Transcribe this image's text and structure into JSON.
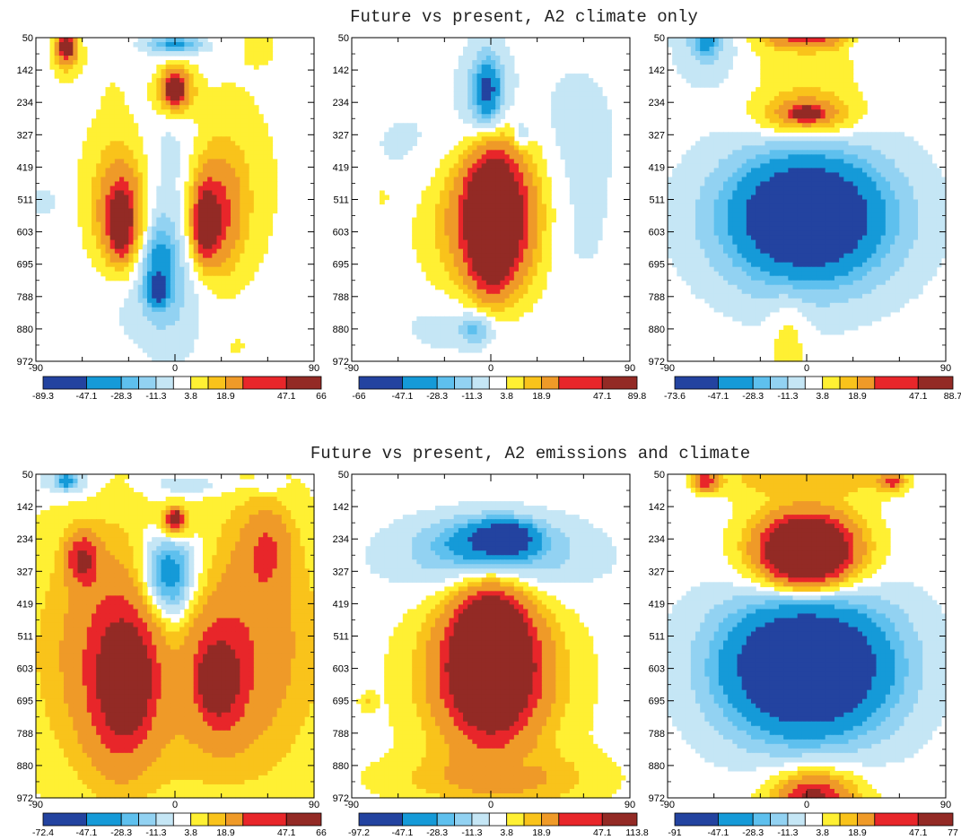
{
  "figure": {
    "rows": [
      {
        "title": "Future vs present, A2 climate only"
      },
      {
        "title": "Future vs present, A2 emissions and climate"
      }
    ]
  },
  "colors": [
    "#2343a0",
    "#159ad8",
    "#5ec0ee",
    "#92d2f2",
    "#c5e6f5",
    "#ffffff",
    "#fff033",
    "#f9c31b",
    "#ef9a28",
    "#e8262a",
    "#932a25"
  ],
  "chart_data": [
    {
      "type": "heatmap",
      "row": 0,
      "col": 0,
      "xlim": [
        -90,
        90
      ],
      "x_ticks": [
        "-90",
        "0",
        "90"
      ],
      "y_ticks": [
        "50",
        "142",
        "234",
        "327",
        "419",
        "511",
        "603",
        "695",
        "788",
        "880",
        "972"
      ],
      "colorbar": [
        "-89.3",
        "-47.1",
        "-28.3",
        "-11.3",
        "3.8",
        "18.9",
        "47.1",
        "66"
      ],
      "features": [
        {
          "x": 0,
          "y": 70,
          "rx": 18,
          "ry": 22,
          "v": -30
        },
        {
          "x": -70,
          "y": 100,
          "rx": 9,
          "ry": 60,
          "v": 20
        },
        {
          "x": -70,
          "y": 75,
          "rx": 5,
          "ry": 30,
          "v": 60
        },
        {
          "x": 55,
          "y": 80,
          "rx": 12,
          "ry": 55,
          "v": 6
        },
        {
          "x": 0,
          "y": 200,
          "rx": 12,
          "ry": 65,
          "v": 40
        },
        {
          "x": 0,
          "y": 190,
          "rx": 5,
          "ry": 35,
          "v": 55
        },
        {
          "x": -40,
          "y": 250,
          "rx": 6,
          "ry": 65,
          "v": 6
        },
        {
          "x": -35,
          "y": 480,
          "rx": 25,
          "ry": 220,
          "v": 13
        },
        {
          "x": -35,
          "y": 560,
          "rx": 14,
          "ry": 140,
          "v": 33
        },
        {
          "x": -35,
          "y": 580,
          "rx": 6,
          "ry": 75,
          "v": 55
        },
        {
          "x": 30,
          "y": 470,
          "rx": 32,
          "ry": 270,
          "v": 13
        },
        {
          "x": 25,
          "y": 560,
          "rx": 16,
          "ry": 150,
          "v": 33
        },
        {
          "x": 20,
          "y": 580,
          "rx": 7,
          "ry": 85,
          "v": 55
        },
        {
          "x": -2,
          "y": 560,
          "rx": 22,
          "ry": 360,
          "v": -15
        },
        {
          "x": -10,
          "y": 700,
          "rx": 10,
          "ry": 110,
          "v": -30
        },
        {
          "x": -12,
          "y": 770,
          "rx": 6,
          "ry": 40,
          "v": -40
        },
        {
          "x": -22,
          "y": 800,
          "rx": 38,
          "ry": 120,
          "v": -6
        },
        {
          "x": -85,
          "y": 520,
          "rx": 18,
          "ry": 70,
          "v": -5
        },
        {
          "x": 40,
          "y": 930,
          "rx": 4,
          "ry": 20,
          "v": 8
        }
      ]
    },
    {
      "type": "heatmap",
      "row": 0,
      "col": 1,
      "xlim": [
        -90,
        90
      ],
      "x_ticks": [
        "-90",
        "0",
        "90"
      ],
      "y_ticks": [
        "50",
        "142",
        "234",
        "327",
        "419",
        "511",
        "603",
        "695",
        "788",
        "880",
        "972"
      ],
      "colorbar": [
        "-66",
        "-47.1",
        "-28.3",
        "-11.3",
        "3.8",
        "18.9",
        "47.1",
        "89.8"
      ],
      "features": [
        {
          "x": -3,
          "y": 210,
          "rx": 16,
          "ry": 140,
          "v": -20
        },
        {
          "x": -2,
          "y": 200,
          "rx": 7,
          "ry": 75,
          "v": -40
        },
        {
          "x": -40,
          "y": 360,
          "rx": 50,
          "ry": 150,
          "v": -6
        },
        {
          "x": 55,
          "y": 320,
          "rx": 30,
          "ry": 220,
          "v": -7
        },
        {
          "x": 50,
          "y": 620,
          "rx": 30,
          "ry": 180,
          "v": -6
        },
        {
          "x": 20,
          "y": 330,
          "rx": 5,
          "ry": 40,
          "v": -15
        },
        {
          "x": 0,
          "y": 560,
          "rx": 42,
          "ry": 230,
          "v": 12
        },
        {
          "x": 0,
          "y": 560,
          "rx": 30,
          "ry": 200,
          "v": 25
        },
        {
          "x": 5,
          "y": 560,
          "rx": 20,
          "ry": 190,
          "v": 40
        },
        {
          "x": 0,
          "y": 580,
          "rx": 12,
          "ry": 150,
          "v": 75
        },
        {
          "x": -20,
          "y": 870,
          "rx": 40,
          "ry": 90,
          "v": -8
        },
        {
          "x": -10,
          "y": 880,
          "rx": 10,
          "ry": 40,
          "v": -20
        },
        {
          "x": -70,
          "y": 500,
          "rx": 4,
          "ry": 25,
          "v": 8
        }
      ]
    },
    {
      "type": "heatmap",
      "row": 0,
      "col": 2,
      "xlim": [
        -90,
        90
      ],
      "x_ticks": [
        "-90",
        "0",
        "90"
      ],
      "y_ticks": [
        "50",
        "142",
        "234",
        "327",
        "419",
        "511",
        "603",
        "695",
        "788",
        "880",
        "972"
      ],
      "colorbar": [
        "-73.6",
        "-47.1",
        "-28.3",
        "-11.3",
        "3.8",
        "18.9",
        "47.1",
        "88.7"
      ],
      "features": [
        {
          "x": 0,
          "y": 90,
          "rx": 38,
          "ry": 230,
          "v": 10
        },
        {
          "x": 0,
          "y": 270,
          "rx": 30,
          "ry": 60,
          "v": 30
        },
        {
          "x": 0,
          "y": 265,
          "rx": 10,
          "ry": 18,
          "v": 55
        },
        {
          "x": 0,
          "y": 55,
          "rx": 25,
          "ry": 25,
          "v": 30
        },
        {
          "x": -65,
          "y": 60,
          "rx": 20,
          "ry": 110,
          "v": -15
        },
        {
          "x": -65,
          "y": 60,
          "rx": 6,
          "ry": 35,
          "v": -30
        },
        {
          "x": 35,
          "y": 70,
          "rx": 10,
          "ry": 40,
          "v": -8
        },
        {
          "x": 0,
          "y": 560,
          "rx": 75,
          "ry": 300,
          "v": -6
        },
        {
          "x": 0,
          "y": 570,
          "rx": 60,
          "ry": 200,
          "v": -20
        },
        {
          "x": 0,
          "y": 560,
          "rx": 48,
          "ry": 170,
          "v": -40
        },
        {
          "x": 0,
          "y": 560,
          "rx": 30,
          "ry": 110,
          "v": -55
        },
        {
          "x": -12,
          "y": 900,
          "rx": 12,
          "ry": 140,
          "v": 10
        }
      ]
    },
    {
      "type": "heatmap",
      "row": 1,
      "col": 0,
      "xlim": [
        -90,
        90
      ],
      "x_ticks": [
        "-90",
        "0",
        "90"
      ],
      "y_ticks": [
        "50",
        "142",
        "234",
        "327",
        "419",
        "511",
        "603",
        "695",
        "788",
        "880",
        "972"
      ],
      "colorbar": [
        "-72.4",
        "-47.1",
        "-28.3",
        "-11.3",
        "3.8",
        "18.9",
        "47.1",
        "66"
      ],
      "features": [
        {
          "x": 0,
          "y": 560,
          "rx": 100,
          "ry": 440,
          "v": 10
        },
        {
          "x": -40,
          "y": 560,
          "rx": 45,
          "ry": 350,
          "v": 22
        },
        {
          "x": 45,
          "y": 540,
          "rx": 45,
          "ry": 360,
          "v": 22
        },
        {
          "x": -35,
          "y": 650,
          "rx": 20,
          "ry": 220,
          "v": 35
        },
        {
          "x": -30,
          "y": 640,
          "rx": 10,
          "ry": 100,
          "v": 55
        },
        {
          "x": 30,
          "y": 640,
          "rx": 15,
          "ry": 140,
          "v": 33
        },
        {
          "x": 25,
          "y": 640,
          "rx": 7,
          "ry": 60,
          "v": 55
        },
        {
          "x": 0,
          "y": 320,
          "rx": 25,
          "ry": 170,
          "v": -20
        },
        {
          "x": -5,
          "y": 340,
          "rx": 15,
          "ry": 110,
          "v": -33
        },
        {
          "x": 0,
          "y": 500,
          "rx": 10,
          "ry": 190,
          "v": -8
        },
        {
          "x": 0,
          "y": 190,
          "rx": 10,
          "ry": 50,
          "v": 30
        },
        {
          "x": 0,
          "y": 175,
          "rx": 4,
          "ry": 22,
          "v": 55
        },
        {
          "x": -70,
          "y": 70,
          "rx": 18,
          "ry": 45,
          "v": -15
        },
        {
          "x": -70,
          "y": 70,
          "rx": 5,
          "ry": 18,
          "v": -35
        },
        {
          "x": 10,
          "y": 80,
          "rx": 30,
          "ry": 30,
          "v": -12
        },
        {
          "x": 60,
          "y": 80,
          "rx": 10,
          "ry": 25,
          "v": -10
        },
        {
          "x": -60,
          "y": 290,
          "rx": 10,
          "ry": 70,
          "v": 40
        },
        {
          "x": 60,
          "y": 260,
          "rx": 15,
          "ry": 120,
          "v": 22
        }
      ]
    },
    {
      "type": "heatmap",
      "row": 1,
      "col": 1,
      "xlim": [
        -90,
        90
      ],
      "x_ticks": [
        "-90",
        "0",
        "90"
      ],
      "y_ticks": [
        "50",
        "142",
        "234",
        "327",
        "419",
        "511",
        "603",
        "695",
        "788",
        "880",
        "972"
      ],
      "colorbar": [
        "-97.2",
        "-47.1",
        "-28.3",
        "-11.3",
        "3.8",
        "18.9",
        "47.1",
        "113.8"
      ],
      "features": [
        {
          "x": 0,
          "y": 300,
          "rx": 75,
          "ry": 150,
          "v": -6
        },
        {
          "x": 0,
          "y": 280,
          "rx": 55,
          "ry": 100,
          "v": -20
        },
        {
          "x": 0,
          "y": 240,
          "rx": 30,
          "ry": 60,
          "v": -33
        },
        {
          "x": 10,
          "y": 230,
          "rx": 15,
          "ry": 40,
          "v": -55
        },
        {
          "x": 0,
          "y": 640,
          "rx": 55,
          "ry": 300,
          "v": 10
        },
        {
          "x": 0,
          "y": 620,
          "rx": 42,
          "ry": 230,
          "v": 22
        },
        {
          "x": 0,
          "y": 600,
          "rx": 30,
          "ry": 190,
          "v": 40
        },
        {
          "x": 0,
          "y": 560,
          "rx": 20,
          "ry": 160,
          "v": 80
        },
        {
          "x": -20,
          "y": 920,
          "rx": 60,
          "ry": 70,
          "v": 10
        },
        {
          "x": 30,
          "y": 920,
          "rx": 50,
          "ry": 80,
          "v": 10
        },
        {
          "x": 20,
          "y": 880,
          "rx": 10,
          "ry": 40,
          "v": -6
        },
        {
          "x": -80,
          "y": 700,
          "rx": 5,
          "ry": 25,
          "v": 10
        }
      ]
    },
    {
      "type": "heatmap",
      "row": 1,
      "col": 2,
      "xlim": [
        -90,
        90
      ],
      "x_ticks": [
        "-90",
        "0",
        "90"
      ],
      "y_ticks": [
        "50",
        "142",
        "234",
        "327",
        "419",
        "511",
        "603",
        "695",
        "788",
        "880",
        "972"
      ],
      "colorbar": [
        "-91",
        "-47.1",
        "-28.3",
        "-11.3",
        "3.8",
        "18.9",
        "47.1",
        "77"
      ],
      "features": [
        {
          "x": 0,
          "y": 270,
          "rx": 45,
          "ry": 160,
          "v": 10
        },
        {
          "x": 0,
          "y": 270,
          "rx": 38,
          "ry": 130,
          "v": 22
        },
        {
          "x": 0,
          "y": 270,
          "rx": 30,
          "ry": 100,
          "v": 40
        },
        {
          "x": 0,
          "y": 270,
          "rx": 22,
          "ry": 75,
          "v": 60
        },
        {
          "x": -30,
          "y": 60,
          "rx": 35,
          "ry": 55,
          "v": 12
        },
        {
          "x": 30,
          "y": 60,
          "rx": 35,
          "ry": 55,
          "v": 12
        },
        {
          "x": -65,
          "y": 70,
          "rx": 8,
          "ry": 30,
          "v": 40
        },
        {
          "x": 55,
          "y": 70,
          "rx": 8,
          "ry": 25,
          "v": 35
        },
        {
          "x": 0,
          "y": 550,
          "rx": 75,
          "ry": 380,
          "v": -6
        },
        {
          "x": 0,
          "y": 600,
          "rx": 60,
          "ry": 230,
          "v": -20
        },
        {
          "x": 0,
          "y": 600,
          "rx": 50,
          "ry": 180,
          "v": -33
        },
        {
          "x": 0,
          "y": 600,
          "rx": 42,
          "ry": 150,
          "v": -50
        },
        {
          "x": 5,
          "y": 980,
          "rx": 38,
          "ry": 110,
          "v": 20
        },
        {
          "x": 5,
          "y": 980,
          "rx": 20,
          "ry": 70,
          "v": 40
        }
      ]
    }
  ]
}
